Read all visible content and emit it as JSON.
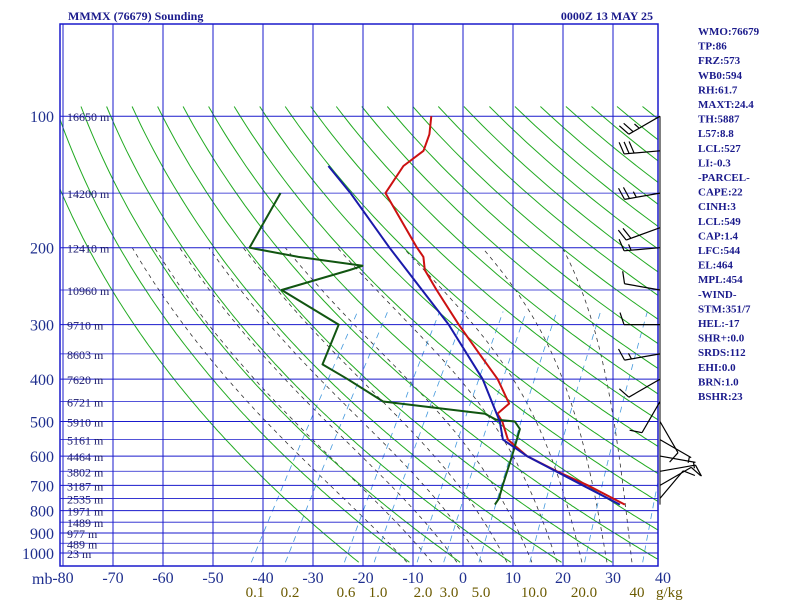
{
  "header": {
    "station": "MMMX (76679) Sounding",
    "time": "0000Z 13 MAY 25"
  },
  "colors": {
    "frame": "#1a1acc",
    "dry_adiabat": "#22aa22",
    "moist_adiabat": "#333333",
    "mixing_ratio": "#4499dd",
    "temperature": "#cc1111",
    "dewpoint": "#115511",
    "parcel": "#1a1aaa",
    "wind": "#000000",
    "text": "#1a1a8c"
  },
  "chart_data": {
    "type": "skew-t",
    "pressure_unit": "mb",
    "pressure_ticks": [
      100,
      200,
      300,
      400,
      500,
      600,
      700,
      800,
      900,
      1000
    ],
    "temperature_ticks": [
      -80,
      -70,
      -60,
      -50,
      -40,
      -30,
      -20,
      -10,
      0,
      10,
      20,
      30,
      40
    ],
    "mixing_ratio_unit": "g/kg",
    "mixing_ratio_labels": [
      "0.1",
      "0.2",
      "0.6",
      "1.0",
      "2.0",
      "3.0",
      "5.0",
      "10.0",
      "20.0",
      "40"
    ],
    "height_labels": [
      {
        "p": 100,
        "text": "16650 m"
      },
      {
        "p": 150,
        "text": "14200 m"
      },
      {
        "p": 200,
        "text": "12410 m"
      },
      {
        "p": 250,
        "text": "10960 m"
      },
      {
        "p": 300,
        "text": "9710 m"
      },
      {
        "p": 350,
        "text": "8603 m"
      },
      {
        "p": 400,
        "text": "7620 m"
      },
      {
        "p": 450,
        "text": "6721 m"
      },
      {
        "p": 500,
        "text": "5910 m"
      },
      {
        "p": 550,
        "text": "5161 m"
      },
      {
        "p": 600,
        "text": "4464 m"
      },
      {
        "p": 650,
        "text": "3802 m"
      },
      {
        "p": 700,
        "text": "3187 m"
      },
      {
        "p": 750,
        "text": "2535 m"
      },
      {
        "p": 800,
        "text": "1971 m"
      },
      {
        "p": 850,
        "text": "1489 m"
      },
      {
        "p": 900,
        "text": "977 m"
      },
      {
        "p": 950,
        "text": "489 m"
      },
      {
        "p": 1000,
        "text": "23 m"
      }
    ],
    "series": [
      {
        "name": "temperature",
        "points": [
          {
            "p": 775,
            "t": 26
          },
          {
            "p": 700,
            "t": 16
          },
          {
            "p": 650,
            "t": 8
          },
          {
            "p": 600,
            "t": 0
          },
          {
            "p": 550,
            "t": -6
          },
          {
            "p": 500,
            "t": -9.5
          },
          {
            "p": 480,
            "t": -11.5
          },
          {
            "p": 455,
            "t": -10.5
          },
          {
            "p": 400,
            "t": -16
          },
          {
            "p": 350,
            "t": -23
          },
          {
            "p": 300,
            "t": -31
          },
          {
            "p": 250,
            "t": -40
          },
          {
            "p": 225,
            "t": -45
          },
          {
            "p": 210,
            "t": -47
          },
          {
            "p": 200,
            "t": -49.5
          },
          {
            "p": 150,
            "t": -63
          },
          {
            "p": 130,
            "t": -63
          },
          {
            "p": 120,
            "t": -61
          },
          {
            "p": 110,
            "t": -62
          },
          {
            "p": 100,
            "t": -64
          }
        ]
      },
      {
        "name": "dewpoint",
        "points": [
          {
            "p": 775,
            "t": 0
          },
          {
            "p": 750,
            "t": 0
          },
          {
            "p": 700,
            "t": -1
          },
          {
            "p": 600,
            "t": -3
          },
          {
            "p": 520,
            "t": -5
          },
          {
            "p": 500,
            "t": -7
          },
          {
            "p": 495,
            "t": -11
          },
          {
            "p": 480,
            "t": -14
          },
          {
            "p": 450,
            "t": -36
          },
          {
            "p": 400,
            "t": -46
          },
          {
            "p": 370,
            "t": -53
          },
          {
            "p": 300,
            "t": -55
          },
          {
            "p": 250,
            "t": -71
          },
          {
            "p": 225,
            "t": -60
          },
          {
            "p": 220,
            "t": -58
          },
          {
            "p": 210,
            "t": -72
          },
          {
            "p": 200,
            "t": -83
          },
          {
            "p": 150,
            "t": -84
          }
        ]
      },
      {
        "name": "parcel",
        "points": [
          {
            "p": 775,
            "t": 25
          },
          {
            "p": 700,
            "t": 15
          },
          {
            "p": 600,
            "t": 0
          },
          {
            "p": 550,
            "t": -7
          },
          {
            "p": 500,
            "t": -10
          },
          {
            "p": 400,
            "t": -19
          },
          {
            "p": 300,
            "t": -33
          },
          {
            "p": 200,
            "t": -55
          },
          {
            "p": 150,
            "t": -70
          },
          {
            "p": 130,
            "t": -78
          }
        ]
      }
    ],
    "dry_adiabats_k": [
      250,
      260,
      270,
      280,
      290,
      300,
      310,
      320,
      330,
      340,
      350,
      360,
      370,
      380,
      390,
      400,
      410,
      420,
      430,
      440,
      450,
      460,
      470,
      480,
      490,
      500,
      510,
      520
    ],
    "moist_adiabats_c": [
      -10,
      -5,
      0,
      5,
      10,
      15,
      20,
      25,
      30,
      35
    ],
    "mixing_ratio_lines_gkg": [
      0.1,
      0.2,
      0.6,
      1.0,
      2.0,
      3.0,
      5.0,
      10.0,
      20.0,
      40.0
    ],
    "winds": [
      {
        "p": 100,
        "dir": 60,
        "spd": 25
      },
      {
        "p": 120,
        "dir": 85,
        "spd": 30
      },
      {
        "p": 150,
        "dir": 80,
        "spd": 25
      },
      {
        "p": 180,
        "dir": 70,
        "spd": 20
      },
      {
        "p": 200,
        "dir": 85,
        "spd": 15
      },
      {
        "p": 250,
        "dir": 100,
        "spd": 10
      },
      {
        "p": 300,
        "dir": 90,
        "spd": 10
      },
      {
        "p": 350,
        "dir": 80,
        "spd": 15
      },
      {
        "p": 400,
        "dir": 60,
        "spd": 10
      },
      {
        "p": 450,
        "dir": 30,
        "spd": 10
      },
      {
        "p": 500,
        "dir": 330,
        "spd": 10
      },
      {
        "p": 550,
        "dir": 300,
        "spd": 5
      },
      {
        "p": 600,
        "dir": 280,
        "spd": 5
      },
      {
        "p": 650,
        "dir": 260,
        "spd": 10
      },
      {
        "p": 700,
        "dir": 240,
        "spd": 10
      },
      {
        "p": 750,
        "dir": 220,
        "spd": 10
      }
    ]
  },
  "indices": [
    "WMO:76679",
    "TP:86",
    "FRZ:573",
    "WB0:594",
    "RH:61.7",
    "MAXT:24.4",
    "TH:5887",
    "L57:8.8",
    "LCL:527",
    "LI:-0.3",
    "-PARCEL-",
    "CAPE:22",
    "CINH:3",
    "LCL:549",
    "CAP:1.4",
    "LFC:544",
    "EL:464",
    "MPL:454",
    "-WIND-",
    "STM:351/7",
    "HEL:-17",
    "SHR+:0.0",
    "SRDS:112",
    "EHI:0.0",
    "BRN:1.0",
    "BSHR:23"
  ]
}
